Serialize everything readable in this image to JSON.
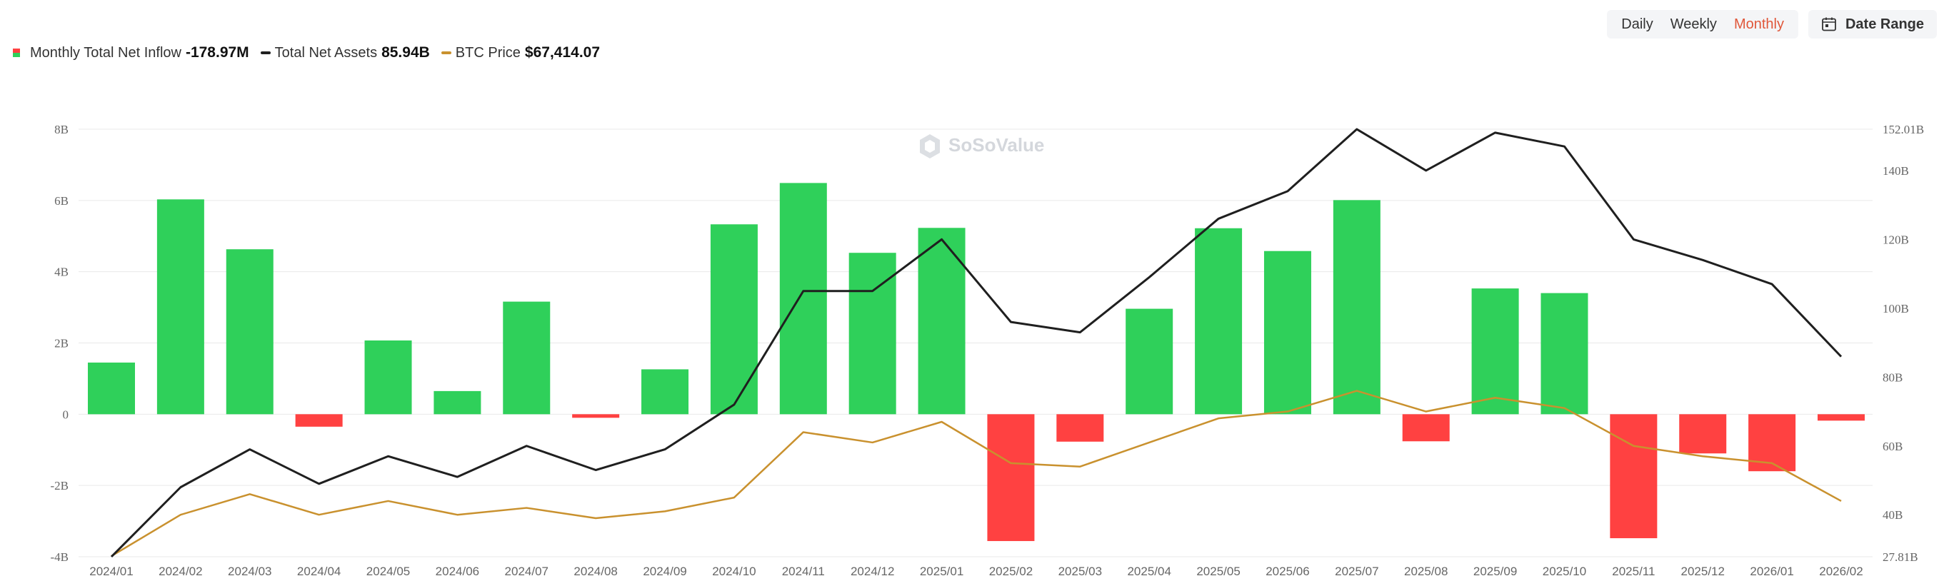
{
  "controls": {
    "tabs": [
      {
        "label": "Daily",
        "active": false
      },
      {
        "label": "Weekly",
        "active": false
      },
      {
        "label": "Monthly",
        "active": true
      }
    ],
    "date_range_label": "Date Range",
    "date_range_icon": "calendar-icon"
  },
  "legend": {
    "inflow": {
      "label": "Monthly Total Net Inflow",
      "value": "-178.97M"
    },
    "assets": {
      "label": "Total Net Assets",
      "value": "85.94B"
    },
    "btc": {
      "label": "BTC Price",
      "value": "$67,414.07"
    }
  },
  "watermark": {
    "text": "SoSoValue"
  },
  "colors": {
    "positive": "#2fd05a",
    "negative": "#ff4141",
    "assets_line": "#1f1f1f",
    "btc_line": "#c9912e",
    "grid": "#e9e9e9",
    "active_tab": "#e0573a"
  },
  "chart_data": {
    "type": "bar",
    "categories": [
      "2024/01",
      "2024/02",
      "2024/03",
      "2024/04",
      "2024/05",
      "2024/06",
      "2024/07",
      "2024/08",
      "2024/09",
      "2024/10",
      "2024/11",
      "2024/12",
      "2025/01",
      "2025/02",
      "2025/03",
      "2025/04",
      "2025/05",
      "2025/06",
      "2025/07",
      "2025/08",
      "2025/09",
      "2025/10",
      "2025/11",
      "2025/12",
      "2026/01",
      "2026/02"
    ],
    "left_axis": {
      "ticks": [
        "-4B",
        "-2B",
        "0",
        "2B",
        "4B",
        "6B",
        "8B"
      ],
      "tick_values": [
        -4,
        -2,
        0,
        2,
        4,
        6,
        8
      ],
      "ylim": [
        -4,
        8
      ],
      "unit": "B"
    },
    "right_axis": {
      "ticks": [
        "27.81B",
        "40B",
        "60B",
        "80B",
        "100B",
        "120B",
        "140B",
        "152.01B"
      ],
      "tick_values": [
        27.81,
        40,
        60,
        80,
        100,
        120,
        140,
        152.01
      ],
      "ylim": [
        27.81,
        152.01
      ],
      "unit": "B"
    },
    "grid": true,
    "series": [
      {
        "name": "Monthly Total Net Inflow",
        "type": "bar",
        "axis": "left",
        "values": [
          1.45,
          6.03,
          4.63,
          -0.35,
          2.07,
          0.65,
          3.16,
          -0.1,
          1.26,
          5.33,
          6.49,
          4.53,
          5.23,
          -3.56,
          -0.77,
          2.96,
          5.22,
          4.58,
          6.01,
          -0.76,
          3.53,
          3.4,
          -3.48,
          -1.1,
          -1.6,
          -0.18
        ]
      },
      {
        "name": "Total Net Assets",
        "type": "line",
        "axis": "right",
        "values": [
          27.81,
          48,
          59,
          49,
          57,
          51,
          60,
          53,
          59,
          72,
          105,
          105,
          120,
          96,
          93,
          109,
          126,
          134,
          152,
          140,
          151,
          147,
          120,
          114,
          107,
          85.94
        ]
      },
      {
        "name": "BTC Price",
        "type": "line",
        "axis": "right",
        "values": [
          28,
          40,
          46,
          40,
          44,
          40,
          42,
          39,
          41,
          45,
          64,
          61,
          67,
          55,
          54,
          61,
          68,
          70,
          76,
          70,
          74,
          71,
          60,
          57,
          55,
          44
        ]
      }
    ]
  }
}
